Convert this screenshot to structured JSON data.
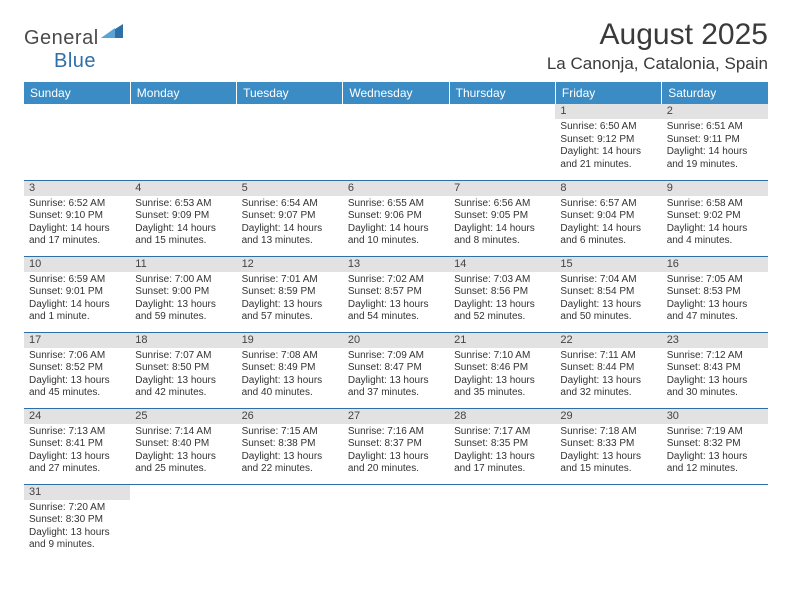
{
  "logo": {
    "text_gray": "General",
    "text_blue": "Blue"
  },
  "header": {
    "month_title": "August 2025",
    "location": "La Canonja, Catalonia, Spain"
  },
  "colors": {
    "header_bg": "#3b8bc4",
    "header_text": "#ffffff",
    "daynum_bg": "#e2e2e2",
    "row_border": "#2f6fa7",
    "logo_gray": "#4a4a4a",
    "logo_blue": "#2f6fa7"
  },
  "weekdays": [
    "Sunday",
    "Monday",
    "Tuesday",
    "Wednesday",
    "Thursday",
    "Friday",
    "Saturday"
  ],
  "weeks": [
    [
      {
        "day": "",
        "sunrise": "",
        "sunset": "",
        "daylight": ""
      },
      {
        "day": "",
        "sunrise": "",
        "sunset": "",
        "daylight": ""
      },
      {
        "day": "",
        "sunrise": "",
        "sunset": "",
        "daylight": ""
      },
      {
        "day": "",
        "sunrise": "",
        "sunset": "",
        "daylight": ""
      },
      {
        "day": "",
        "sunrise": "",
        "sunset": "",
        "daylight": ""
      },
      {
        "day": "1",
        "sunrise": "Sunrise: 6:50 AM",
        "sunset": "Sunset: 9:12 PM",
        "daylight": "Daylight: 14 hours and 21 minutes."
      },
      {
        "day": "2",
        "sunrise": "Sunrise: 6:51 AM",
        "sunset": "Sunset: 9:11 PM",
        "daylight": "Daylight: 14 hours and 19 minutes."
      }
    ],
    [
      {
        "day": "3",
        "sunrise": "Sunrise: 6:52 AM",
        "sunset": "Sunset: 9:10 PM",
        "daylight": "Daylight: 14 hours and 17 minutes."
      },
      {
        "day": "4",
        "sunrise": "Sunrise: 6:53 AM",
        "sunset": "Sunset: 9:09 PM",
        "daylight": "Daylight: 14 hours and 15 minutes."
      },
      {
        "day": "5",
        "sunrise": "Sunrise: 6:54 AM",
        "sunset": "Sunset: 9:07 PM",
        "daylight": "Daylight: 14 hours and 13 minutes."
      },
      {
        "day": "6",
        "sunrise": "Sunrise: 6:55 AM",
        "sunset": "Sunset: 9:06 PM",
        "daylight": "Daylight: 14 hours and 10 minutes."
      },
      {
        "day": "7",
        "sunrise": "Sunrise: 6:56 AM",
        "sunset": "Sunset: 9:05 PM",
        "daylight": "Daylight: 14 hours and 8 minutes."
      },
      {
        "day": "8",
        "sunrise": "Sunrise: 6:57 AM",
        "sunset": "Sunset: 9:04 PM",
        "daylight": "Daylight: 14 hours and 6 minutes."
      },
      {
        "day": "9",
        "sunrise": "Sunrise: 6:58 AM",
        "sunset": "Sunset: 9:02 PM",
        "daylight": "Daylight: 14 hours and 4 minutes."
      }
    ],
    [
      {
        "day": "10",
        "sunrise": "Sunrise: 6:59 AM",
        "sunset": "Sunset: 9:01 PM",
        "daylight": "Daylight: 14 hours and 1 minute."
      },
      {
        "day": "11",
        "sunrise": "Sunrise: 7:00 AM",
        "sunset": "Sunset: 9:00 PM",
        "daylight": "Daylight: 13 hours and 59 minutes."
      },
      {
        "day": "12",
        "sunrise": "Sunrise: 7:01 AM",
        "sunset": "Sunset: 8:59 PM",
        "daylight": "Daylight: 13 hours and 57 minutes."
      },
      {
        "day": "13",
        "sunrise": "Sunrise: 7:02 AM",
        "sunset": "Sunset: 8:57 PM",
        "daylight": "Daylight: 13 hours and 54 minutes."
      },
      {
        "day": "14",
        "sunrise": "Sunrise: 7:03 AM",
        "sunset": "Sunset: 8:56 PM",
        "daylight": "Daylight: 13 hours and 52 minutes."
      },
      {
        "day": "15",
        "sunrise": "Sunrise: 7:04 AM",
        "sunset": "Sunset: 8:54 PM",
        "daylight": "Daylight: 13 hours and 50 minutes."
      },
      {
        "day": "16",
        "sunrise": "Sunrise: 7:05 AM",
        "sunset": "Sunset: 8:53 PM",
        "daylight": "Daylight: 13 hours and 47 minutes."
      }
    ],
    [
      {
        "day": "17",
        "sunrise": "Sunrise: 7:06 AM",
        "sunset": "Sunset: 8:52 PM",
        "daylight": "Daylight: 13 hours and 45 minutes."
      },
      {
        "day": "18",
        "sunrise": "Sunrise: 7:07 AM",
        "sunset": "Sunset: 8:50 PM",
        "daylight": "Daylight: 13 hours and 42 minutes."
      },
      {
        "day": "19",
        "sunrise": "Sunrise: 7:08 AM",
        "sunset": "Sunset: 8:49 PM",
        "daylight": "Daylight: 13 hours and 40 minutes."
      },
      {
        "day": "20",
        "sunrise": "Sunrise: 7:09 AM",
        "sunset": "Sunset: 8:47 PM",
        "daylight": "Daylight: 13 hours and 37 minutes."
      },
      {
        "day": "21",
        "sunrise": "Sunrise: 7:10 AM",
        "sunset": "Sunset: 8:46 PM",
        "daylight": "Daylight: 13 hours and 35 minutes."
      },
      {
        "day": "22",
        "sunrise": "Sunrise: 7:11 AM",
        "sunset": "Sunset: 8:44 PM",
        "daylight": "Daylight: 13 hours and 32 minutes."
      },
      {
        "day": "23",
        "sunrise": "Sunrise: 7:12 AM",
        "sunset": "Sunset: 8:43 PM",
        "daylight": "Daylight: 13 hours and 30 minutes."
      }
    ],
    [
      {
        "day": "24",
        "sunrise": "Sunrise: 7:13 AM",
        "sunset": "Sunset: 8:41 PM",
        "daylight": "Daylight: 13 hours and 27 minutes."
      },
      {
        "day": "25",
        "sunrise": "Sunrise: 7:14 AM",
        "sunset": "Sunset: 8:40 PM",
        "daylight": "Daylight: 13 hours and 25 minutes."
      },
      {
        "day": "26",
        "sunrise": "Sunrise: 7:15 AM",
        "sunset": "Sunset: 8:38 PM",
        "daylight": "Daylight: 13 hours and 22 minutes."
      },
      {
        "day": "27",
        "sunrise": "Sunrise: 7:16 AM",
        "sunset": "Sunset: 8:37 PM",
        "daylight": "Daylight: 13 hours and 20 minutes."
      },
      {
        "day": "28",
        "sunrise": "Sunrise: 7:17 AM",
        "sunset": "Sunset: 8:35 PM",
        "daylight": "Daylight: 13 hours and 17 minutes."
      },
      {
        "day": "29",
        "sunrise": "Sunrise: 7:18 AM",
        "sunset": "Sunset: 8:33 PM",
        "daylight": "Daylight: 13 hours and 15 minutes."
      },
      {
        "day": "30",
        "sunrise": "Sunrise: 7:19 AM",
        "sunset": "Sunset: 8:32 PM",
        "daylight": "Daylight: 13 hours and 12 minutes."
      }
    ],
    [
      {
        "day": "31",
        "sunrise": "Sunrise: 7:20 AM",
        "sunset": "Sunset: 8:30 PM",
        "daylight": "Daylight: 13 hours and 9 minutes."
      },
      {
        "day": "",
        "sunrise": "",
        "sunset": "",
        "daylight": ""
      },
      {
        "day": "",
        "sunrise": "",
        "sunset": "",
        "daylight": ""
      },
      {
        "day": "",
        "sunrise": "",
        "sunset": "",
        "daylight": ""
      },
      {
        "day": "",
        "sunrise": "",
        "sunset": "",
        "daylight": ""
      },
      {
        "day": "",
        "sunrise": "",
        "sunset": "",
        "daylight": ""
      },
      {
        "day": "",
        "sunrise": "",
        "sunset": "",
        "daylight": ""
      }
    ]
  ]
}
